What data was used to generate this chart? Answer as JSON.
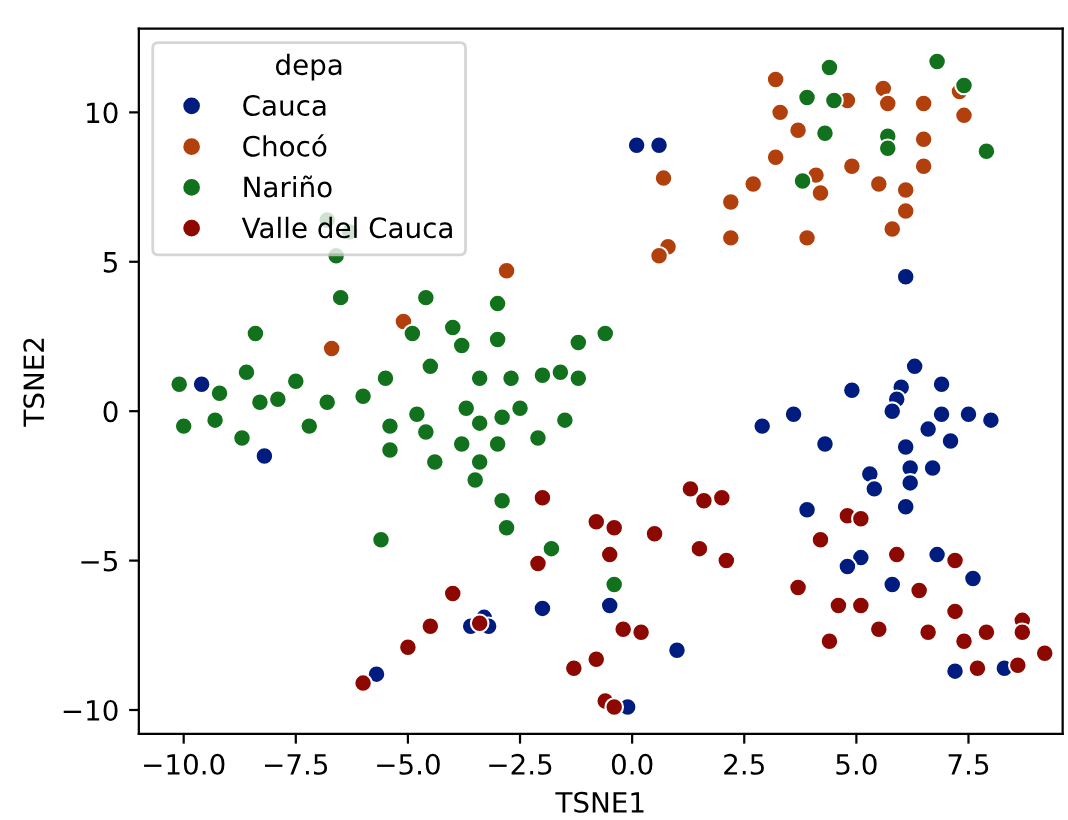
{
  "chart_data": {
    "type": "scatter",
    "xlabel": "TSNE1",
    "ylabel": "TSNE2",
    "legend_title": "depa",
    "legend": "top left",
    "grid": false,
    "marker": "circle",
    "xlim": [
      -11.0,
      9.6
    ],
    "ylim": [
      -10.8,
      12.8
    ],
    "xticks": [
      {
        "value": -10,
        "label": "−10.0"
      },
      {
        "value": -7.5,
        "label": "−7.5"
      },
      {
        "value": -5,
        "label": "−5.0"
      },
      {
        "value": -2.5,
        "label": "−2.5"
      },
      {
        "value": 0,
        "label": "0.0"
      },
      {
        "value": 2.5,
        "label": "2.5"
      },
      {
        "value": 5,
        "label": "5.0"
      },
      {
        "value": 7.5,
        "label": "7.5"
      }
    ],
    "yticks": [
      {
        "value": -10,
        "label": "−10"
      },
      {
        "value": -5,
        "label": "−5"
      },
      0,
      5,
      10
    ],
    "series": [
      {
        "name": "Cauca",
        "color": "#001c7f",
        "x": [
          0.1,
          0.6,
          6.1,
          6.3,
          4.9,
          6.0,
          6.9,
          5.9,
          5.8,
          3.6,
          2.9,
          6.9,
          7.5,
          8.0,
          6.6,
          4.3,
          7.1,
          6.1,
          6.2,
          6.7,
          5.3,
          5.4,
          6.2,
          6.1,
          3.9,
          5.1,
          4.8,
          5.8,
          6.8,
          7.6,
          1.0,
          7.2,
          8.3,
          -9.6,
          -8.2,
          -2.0,
          -3.3,
          -3.6,
          -3.2,
          -0.5,
          -5.7,
          -0.1
        ],
        "values": [
          8.9,
          8.9,
          4.5,
          1.5,
          0.7,
          0.8,
          0.9,
          0.4,
          0.0,
          -0.1,
          -0.5,
          -0.1,
          -0.1,
          -0.3,
          -0.6,
          -1.1,
          -1.0,
          -1.2,
          -1.9,
          -1.9,
          -2.1,
          -2.6,
          -2.4,
          -3.2,
          -3.3,
          -4.9,
          -5.2,
          -5.8,
          -4.8,
          -5.6,
          -8.0,
          -8.7,
          -8.6,
          0.9,
          -1.5,
          -6.6,
          -6.9,
          -7.2,
          -7.2,
          -6.5,
          -8.8,
          -9.9
        ]
      },
      {
        "name": "Chocó",
        "color": "#b1400d",
        "x": [
          3.2,
          4.8,
          5.6,
          5.7,
          6.5,
          7.3,
          7.4,
          3.3,
          3.7,
          6.5,
          3.2,
          6.5,
          0.7,
          4.9,
          2.7,
          4.1,
          4.2,
          5.5,
          6.1,
          6.1,
          2.2,
          5.8,
          2.2,
          3.9,
          0.8,
          0.6,
          -5.1,
          -6.7,
          -2.8,
          null
        ],
        "values": [
          11.1,
          10.4,
          10.8,
          10.3,
          10.3,
          10.7,
          9.9,
          10.0,
          9.4,
          9.1,
          8.5,
          8.2,
          7.8,
          8.2,
          7.6,
          7.9,
          7.3,
          7.6,
          7.4,
          6.7,
          7.0,
          6.1,
          5.8,
          5.8,
          5.5,
          5.2,
          3.0,
          2.1,
          4.7,
          null
        ]
      },
      {
        "name": "Nariño",
        "color": "#12711c",
        "x": [
          4.4,
          6.8,
          7.4,
          3.9,
          4.5,
          4.3,
          5.7,
          5.7,
          7.9,
          3.8,
          -0.6,
          -6.6,
          -6.5,
          -4.6,
          -8.4,
          -4.9,
          -4.0,
          -4.5,
          -8.6,
          -7.5,
          -5.5,
          -10.1,
          -3.0,
          -3.8,
          -3.0,
          -1.2,
          -9.2,
          -8.3,
          -7.9,
          -6.8,
          -6.0,
          -3.4,
          -2.7,
          -2.0,
          -1.6,
          -1.2,
          -10.0,
          -9.3,
          -8.7,
          -7.2,
          -5.4,
          -4.8,
          -3.7,
          -3.4,
          -2.9,
          -2.5,
          -1.5,
          -4.6,
          -2.1,
          -5.4,
          -3.8,
          -3.0,
          -4.4,
          -3.4,
          -3.5,
          -2.9,
          -2.8,
          -5.6,
          -1.8,
          -0.4,
          -6.8,
          -6.3
        ],
        "values": [
          11.5,
          11.7,
          10.9,
          10.5,
          10.4,
          9.3,
          9.2,
          8.8,
          8.7,
          7.7,
          2.6,
          5.2,
          3.8,
          3.8,
          2.6,
          2.6,
          2.8,
          1.5,
          1.3,
          1.0,
          1.1,
          0.9,
          3.6,
          2.2,
          2.4,
          2.3,
          0.6,
          0.3,
          0.4,
          0.3,
          0.5,
          1.1,
          1.1,
          1.2,
          1.3,
          1.1,
          -0.5,
          -0.3,
          -0.9,
          -0.5,
          -0.5,
          -0.1,
          0.1,
          -0.4,
          -0.2,
          0.1,
          -0.3,
          -0.7,
          -0.9,
          -1.3,
          -1.1,
          -1.1,
          -1.7,
          -1.7,
          -2.3,
          -3.0,
          -3.9,
          -4.3,
          -4.6,
          -5.8,
          6.4,
          6.0
        ]
      },
      {
        "name": "Valle del Cauca",
        "color": "#8c0800",
        "x": [
          -2.0,
          -0.8,
          -0.4,
          0.5,
          -0.5,
          -2.1,
          -4.0,
          -4.5,
          -3.4,
          -5.0,
          -0.2,
          0.2,
          -1.3,
          -0.8,
          -6.0,
          -0.6,
          -0.4,
          1.3,
          1.6,
          2.0,
          1.5,
          2.1,
          4.8,
          5.1,
          4.2,
          5.9,
          7.2,
          3.7,
          4.6,
          5.1,
          6.4,
          7.2,
          5.5,
          4.4,
          6.6,
          7.4,
          7.9,
          8.7,
          8.7,
          9.2,
          7.7,
          8.6
        ],
        "values": [
          -2.9,
          -3.7,
          -3.9,
          -4.1,
          -4.8,
          -5.1,
          -6.1,
          -7.2,
          -7.1,
          -7.9,
          -7.3,
          -7.4,
          -8.6,
          -8.3,
          -9.1,
          -9.7,
          -9.9,
          -2.6,
          -3.0,
          -2.9,
          -4.6,
          -5.0,
          -3.5,
          -3.6,
          -4.3,
          -4.8,
          -5.0,
          -5.9,
          -6.5,
          -6.5,
          -6.0,
          -6.7,
          -7.3,
          -7.7,
          -7.4,
          -7.7,
          -7.4,
          -7.0,
          -7.4,
          -8.1,
          -8.6,
          -8.5
        ]
      }
    ]
  }
}
